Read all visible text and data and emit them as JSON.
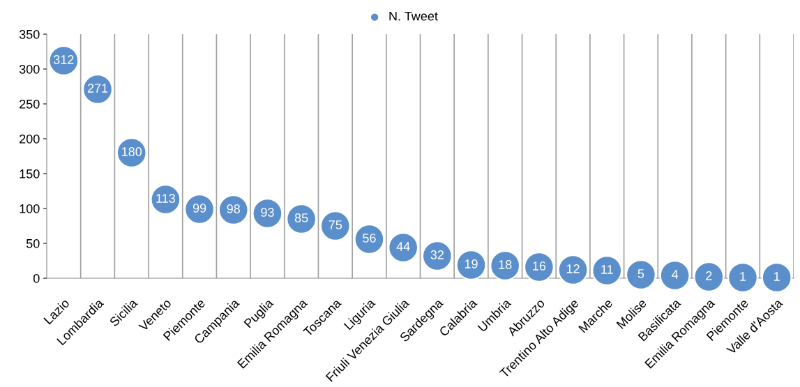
{
  "chart_data": {
    "type": "scatter",
    "categories": [
      "Lazio",
      "Lombardia",
      "Sicilia",
      "Veneto",
      "Piemonte",
      "Campania",
      "Puglia",
      "Emilia Romagna",
      "Toscana",
      "Liguria",
      "Friuli Venezia Giulia",
      "Sardegna",
      "Calabria",
      "Umbria",
      "Abruzzo",
      "Trentino Alto Adige",
      "Marche",
      "Molise",
      "Basilicata",
      "Emilia Romagna",
      "Piemonte",
      "Valle d'Aosta"
    ],
    "series": [
      {
        "name": "N. Tweet",
        "color": "#5b8fcb",
        "values": [
          312,
          271,
          180,
          113,
          99,
          98,
          93,
          85,
          75,
          56,
          44,
          32,
          19,
          18,
          16,
          12,
          11,
          5,
          4,
          2,
          1,
          1
        ]
      }
    ],
    "ylim": [
      0,
      350
    ],
    "yticks": [
      0,
      50,
      100,
      150,
      200,
      250,
      300,
      350
    ],
    "grid": "x",
    "legend": "top",
    "marker": "circle",
    "data_labels": true
  }
}
